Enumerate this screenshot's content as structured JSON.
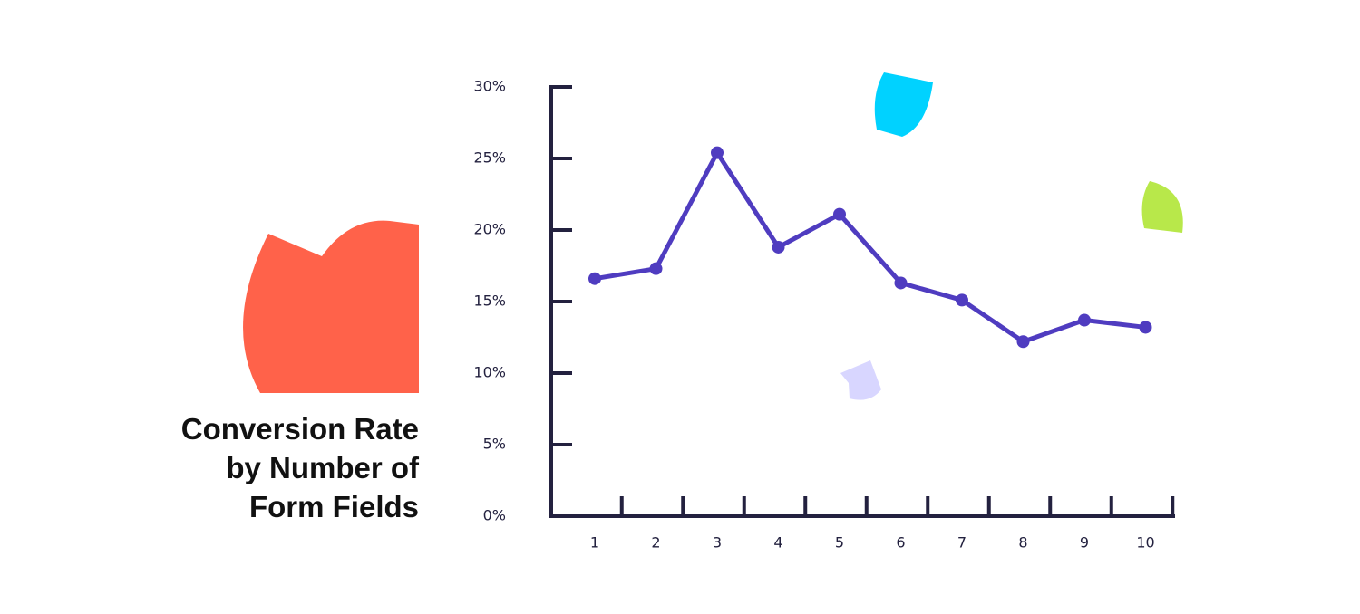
{
  "chart_data": {
    "type": "line",
    "title": "Conversion Rate by Number of Form Fields",
    "categories": [
      "1",
      "2",
      "3",
      "4",
      "5",
      "6",
      "7",
      "8",
      "9",
      "10"
    ],
    "series": [
      {
        "name": "Conversion rate",
        "color": "#4f3cc0",
        "values": [
          16.6,
          17.3,
          25.4,
          18.8,
          21.1,
          16.3,
          15.1,
          12.2,
          13.7,
          13.2
        ]
      }
    ],
    "ylim": [
      0,
      30
    ],
    "yticks": [
      {
        "value": 0,
        "label": "0%"
      },
      {
        "value": 5,
        "label": "5%"
      },
      {
        "value": 10,
        "label": "10%"
      },
      {
        "value": 15,
        "label": "15%"
      },
      {
        "value": 20,
        "label": "20%"
      },
      {
        "value": 25,
        "label": "25%"
      },
      {
        "value": 30,
        "label": "30%"
      }
    ],
    "axis_color": "#23213f"
  }
}
